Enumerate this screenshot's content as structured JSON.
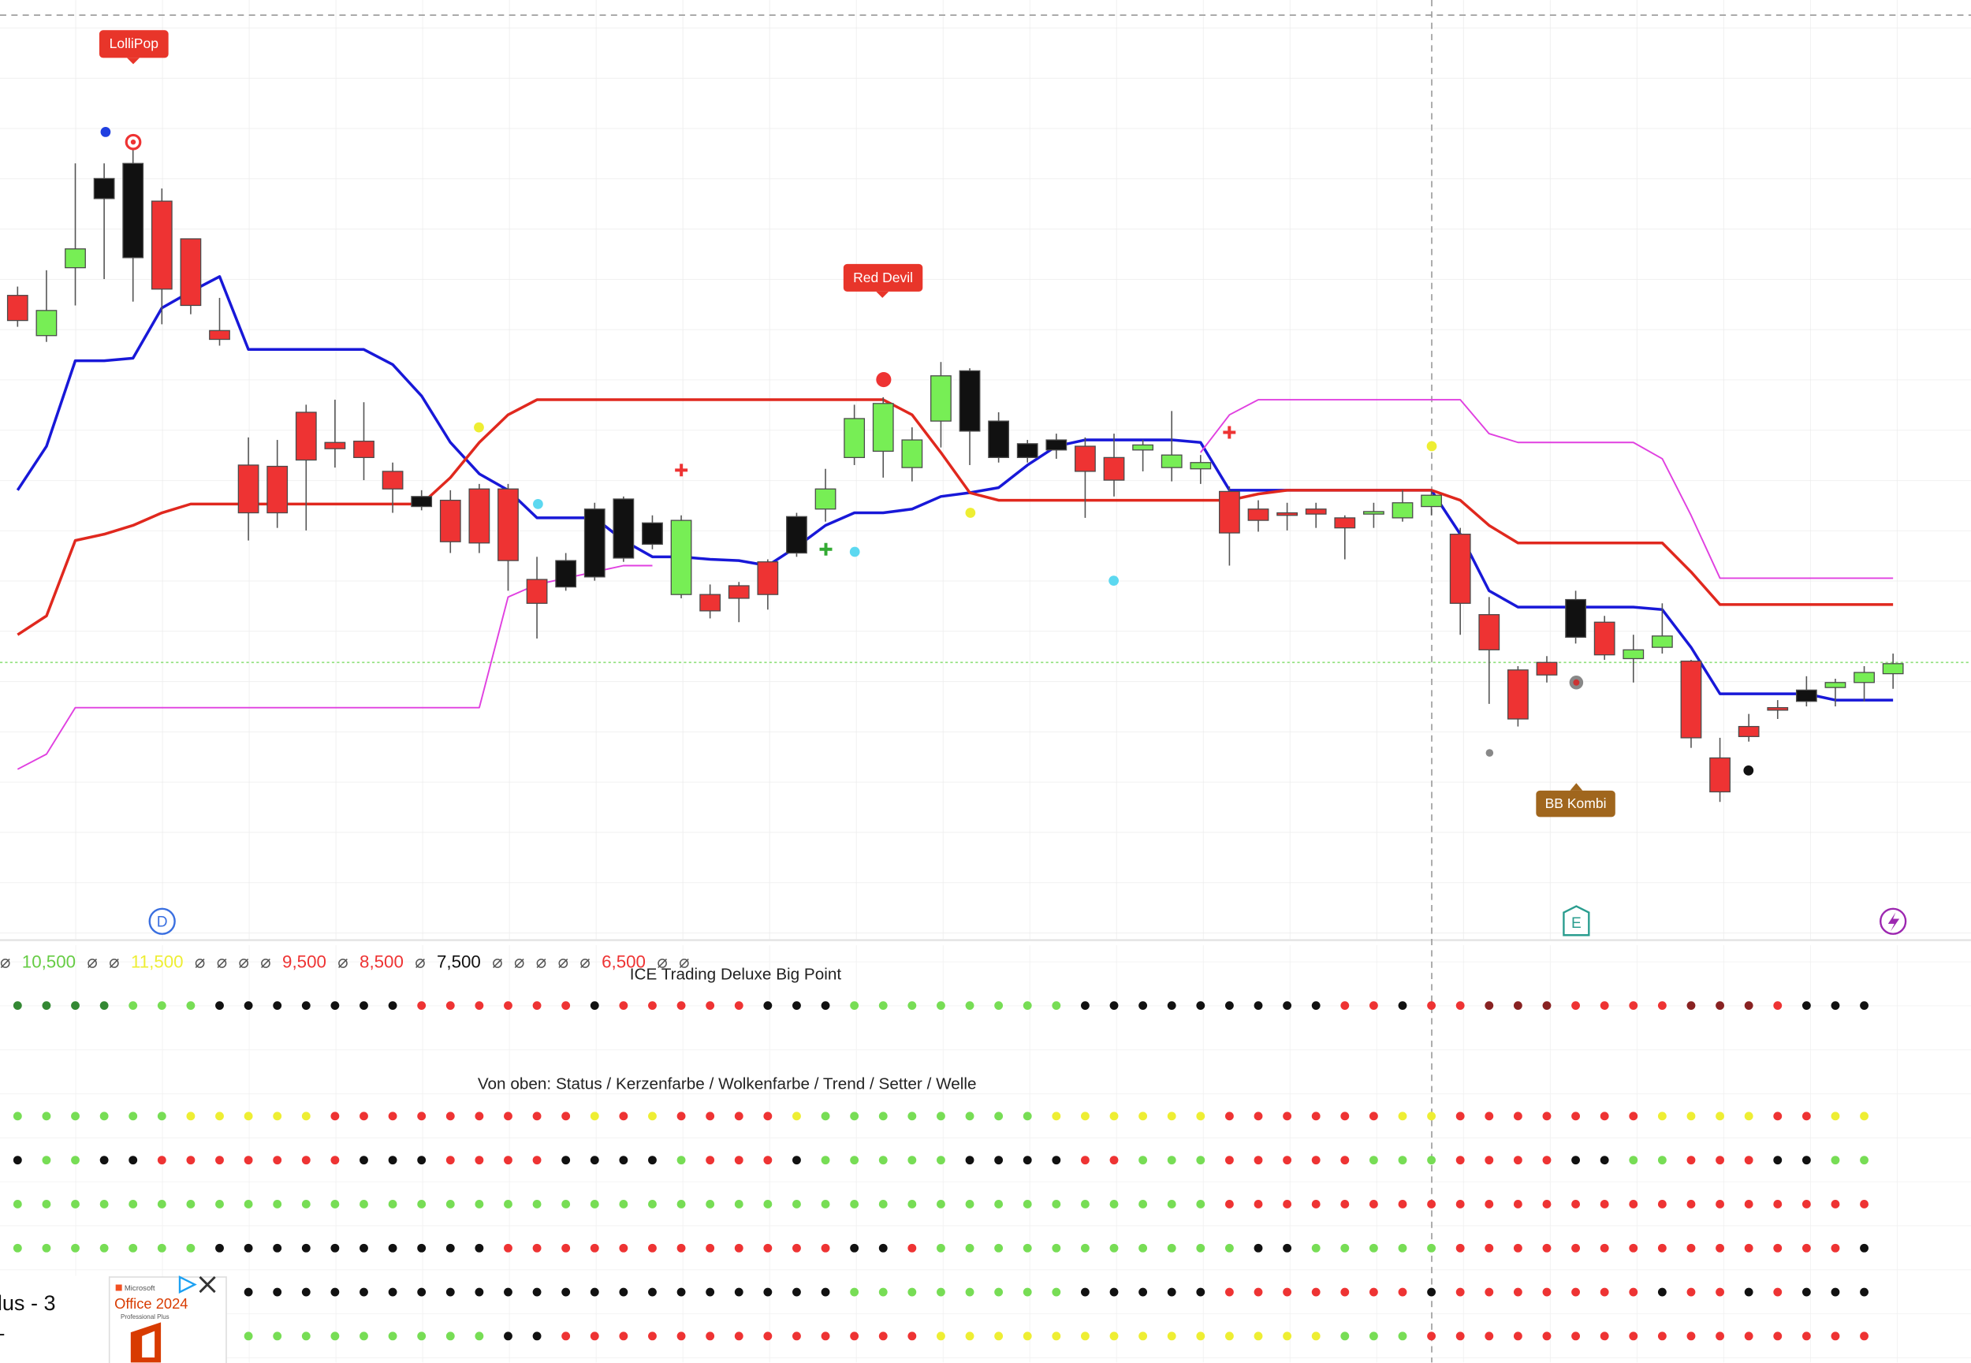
{
  "chart_data": {
    "type": "candlestick",
    "open": [
      465,
      433,
      487,
      542,
      495,
      540,
      510,
      437,
      330,
      329,
      372,
      348,
      349,
      325,
      297,
      302,
      311,
      311,
      239,
      233,
      241,
      256,
      267,
      227,
      227,
      234,
      253,
      260,
      295,
      336,
      341,
      328,
      365,
      357,
      336,
      336,
      342,
      345,
      336,
      342,
      328,
      327,
      309,
      295,
      292,
      295,
      288,
      291,
      288,
      297,
      275,
      211,
      167,
      173,
      193,
      205,
      176,
      185,
      174,
      97,
      122,
      137,
      142,
      153,
      157,
      164
    ],
    "high": [
      472,
      485,
      570,
      570,
      585,
      550,
      510,
      463,
      352,
      350,
      378,
      382,
      380,
      332,
      310,
      310,
      315,
      315,
      257,
      260,
      300,
      305,
      290,
      290,
      235,
      237,
      255,
      292,
      327,
      378,
      384,
      360,
      412,
      407,
      372,
      350,
      355,
      352,
      355,
      350,
      373,
      338,
      313,
      302,
      300,
      300,
      290,
      300,
      310,
      310,
      280,
      225,
      170,
      178,
      230,
      210,
      195,
      220,
      175,
      113,
      132,
      143,
      162,
      160,
      170,
      180
    ],
    "low": [
      440,
      428,
      457,
      478,
      460,
      442,
      450,
      425,
      270,
      280,
      278,
      328,
      318,
      292,
      294,
      260,
      260,
      230,
      192,
      230,
      238,
      253,
      263,
      224,
      208,
      205,
      215,
      257,
      285,
      330,
      320,
      317,
      344,
      330,
      332,
      332,
      335,
      288,
      305,
      325,
      317,
      315,
      250,
      277,
      278,
      280,
      255,
      280,
      285,
      290,
      195,
      140,
      122,
      157,
      188,
      175,
      157,
      180,
      105,
      62,
      110,
      128,
      138,
      138,
      142,
      152
    ],
    "close": [
      445,
      453,
      502,
      558,
      570,
      470,
      457,
      430,
      292,
      292,
      334,
      343,
      336,
      311,
      305,
      269,
      268,
      254,
      220,
      254,
      295,
      303,
      284,
      286,
      214,
      224,
      227,
      289,
      311,
      367,
      379,
      350,
      401,
      405,
      365,
      347,
      350,
      325,
      318,
      346,
      338,
      332,
      276,
      286,
      290,
      291,
      280,
      293,
      300,
      306,
      220,
      183,
      128,
      163,
      223,
      179,
      183,
      194,
      113,
      70,
      114,
      135,
      151,
      157,
      165,
      172
    ],
    "colors": [
      "#e33",
      "#7e5",
      "#7e5",
      "#111",
      "#111",
      "#e33",
      "#e33",
      "#e33",
      "#e33",
      "#e33",
      "#e33",
      "#e33",
      "#e33",
      "#e33",
      "#111",
      "#e33",
      "#e33",
      "#e33",
      "#e33",
      "#111",
      "#111",
      "#111",
      "#111",
      "#7e5",
      "#e33",
      "#e33",
      "#e33",
      "#111",
      "#7e5",
      "#7e5",
      "#7e5",
      "#7e5",
      "#7e5",
      "#111",
      "#111",
      "#111",
      "#111",
      "#e33",
      "#e33",
      "#7e5",
      "#7e5",
      "#7e5",
      "#e33",
      "#e33",
      "#e33",
      "#e33",
      "#e33",
      "#7e5",
      "#7e5",
      "#7e5",
      "#e33",
      "#e33",
      "#e33",
      "#e33",
      "#111",
      "#e33",
      "#7e5",
      "#7e5",
      "#e33",
      "#e33",
      "#e33",
      "#e33",
      "#111",
      "#7e5",
      "#7e5",
      "#7e5"
    ],
    "ylim": [
      0,
      700
    ],
    "series": [
      {
        "color": "#1818d8",
        "values": [
          310,
          345,
          413,
          413,
          415,
          455,
          468,
          480,
          422,
          422,
          422,
          422,
          422,
          410,
          385,
          348,
          323,
          310,
          288,
          288,
          288,
          270,
          257,
          257,
          255,
          254,
          250,
          265,
          282,
          292,
          292,
          295,
          305,
          308,
          312,
          330,
          345,
          350,
          350,
          350,
          350,
          348,
          310,
          310,
          310,
          310,
          310,
          310,
          310,
          310,
          275,
          230,
          217,
          217,
          217,
          217,
          217,
          215,
          185,
          148,
          148,
          148,
          148,
          143,
          143,
          143
        ]
      },
      {
        "color": "#e0281e",
        "values": [
          195,
          210,
          270,
          275,
          282,
          292,
          299,
          299,
          299,
          299,
          299,
          299,
          299,
          299,
          299,
          320,
          348,
          370,
          382,
          382,
          382,
          382,
          382,
          382,
          382,
          382,
          382,
          382,
          382,
          382,
          382,
          370,
          340,
          308,
          302,
          302,
          302,
          302,
          302,
          302,
          302,
          302,
          302,
          307,
          310,
          310,
          310,
          310,
          310,
          310,
          302,
          282,
          268,
          268,
          268,
          268,
          268,
          268,
          245,
          219,
          219,
          219,
          219,
          219,
          219,
          219
        ]
      },
      {
        "color": "#e040e0",
        "values": [
          88,
          100,
          137,
          137,
          137,
          137,
          137,
          137,
          137,
          137,
          137,
          137,
          137,
          137,
          137,
          137,
          137,
          225,
          235,
          240,
          245,
          250,
          250,
          null,
          null,
          null,
          null,
          null,
          null,
          null,
          null,
          null,
          null,
          null,
          null,
          null,
          null,
          null,
          null,
          null,
          null,
          340,
          370,
          382,
          382,
          382,
          382,
          382,
          382,
          382,
          382,
          355,
          348,
          348,
          348,
          348,
          348,
          335,
          290,
          240,
          240,
          240,
          240,
          240,
          240,
          240
        ]
      }
    ]
  },
  "labels": {
    "lollipop": "LolliPop",
    "red_devil": "Red Devil",
    "bb_kombi": "BB Kombi"
  },
  "badges": {
    "d": "D",
    "e": "E"
  },
  "status_row": [
    {
      "text": "⌀",
      "color": "#555"
    },
    {
      "text": "10,500",
      "color": "#6c4"
    },
    {
      "text": "⌀",
      "color": "#555"
    },
    {
      "text": "⌀",
      "color": "#555"
    },
    {
      "text": "11,500",
      "color": "#ee3"
    },
    {
      "text": "⌀",
      "color": "#555"
    },
    {
      "text": "⌀",
      "color": "#555"
    },
    {
      "text": "⌀",
      "color": "#555"
    },
    {
      "text": "⌀",
      "color": "#555"
    },
    {
      "text": "9,500",
      "color": "#e33"
    },
    {
      "text": "⌀",
      "color": "#555"
    },
    {
      "text": "8,500",
      "color": "#e33"
    },
    {
      "text": "⌀",
      "color": "#555"
    },
    {
      "text": "7,500",
      "color": "#111"
    },
    {
      "text": "⌀",
      "color": "#555"
    },
    {
      "text": "⌀",
      "color": "#555"
    },
    {
      "text": "⌀",
      "color": "#555"
    },
    {
      "text": "⌀",
      "color": "#555"
    },
    {
      "text": "⌀",
      "color": "#555"
    },
    {
      "text": "6,500",
      "color": "#e33"
    },
    {
      "text": "⌀",
      "color": "#555"
    },
    {
      "text": "⌀",
      "color": "#555"
    }
  ],
  "indicator_title": "ICE Trading Deluxe Big Point",
  "legend_note": "Von oben: Status / Kerzenfarbe / Wolkenfarbe / Trend / Setter / Welle",
  "indicator_rows": [
    {
      "colors": [
        "#383",
        "#383",
        "#383",
        "#383",
        "#7d5",
        "#7d5",
        "#7d5",
        "#111",
        "#111",
        "#111",
        "#111",
        "#111",
        "#111",
        "#111",
        "#e33",
        "#e33",
        "#e33",
        "#e33",
        "#e33",
        "#e33",
        "#111",
        "#e33",
        "#e33",
        "#e33",
        "#e33",
        "#e33",
        "#111",
        "#111",
        "#111",
        "#7d5",
        "#7d5",
        "#7d5",
        "#7d5",
        "#7d5",
        "#7d5",
        "#7d5",
        "#7d5",
        "#111",
        "#111",
        "#111",
        "#111",
        "#111",
        "#111",
        "#111",
        "#111",
        "#111",
        "#e33",
        "#e33",
        "#111",
        "#e33",
        "#e33",
        "#822",
        "#822",
        "#822",
        "#e33",
        "#e33",
        "#e33",
        "#e33",
        "#822",
        "#822",
        "#822",
        "#e33",
        "#111",
        "#111",
        "#111"
      ]
    },
    {
      "colors": [
        "#7d5",
        "#7d5",
        "#7d5",
        "#7d5",
        "#7d5",
        "#7d5",
        "#ee3",
        "#ee3",
        "#ee3",
        "#ee3",
        "#ee3",
        "#e33",
        "#e33",
        "#e33",
        "#e33",
        "#e33",
        "#e33",
        "#e33",
        "#e33",
        "#e33",
        "#ee3",
        "#e33",
        "#ee3",
        "#e33",
        "#e33",
        "#e33",
        "#e33",
        "#ee3",
        "#7d5",
        "#7d5",
        "#7d5",
        "#7d5",
        "#7d5",
        "#7d5",
        "#7d5",
        "#7d5",
        "#ee3",
        "#ee3",
        "#ee3",
        "#ee3",
        "#ee3",
        "#ee3",
        "#e33",
        "#e33",
        "#e33",
        "#e33",
        "#e33",
        "#e33",
        "#ee3",
        "#ee3",
        "#e33",
        "#e33",
        "#e33",
        "#e33",
        "#e33",
        "#e33",
        "#e33",
        "#ee3",
        "#ee3",
        "#ee3",
        "#ee3",
        "#e33",
        "#e33",
        "#ee3",
        "#ee3"
      ]
    },
    {
      "colors": [
        "#111",
        "#7d5",
        "#7d5",
        "#111",
        "#111",
        "#e33",
        "#e33",
        "#e33",
        "#e33",
        "#e33",
        "#e33",
        "#e33",
        "#111",
        "#111",
        "#111",
        "#e33",
        "#e33",
        "#e33",
        "#e33",
        "#111",
        "#111",
        "#111",
        "#111",
        "#7d5",
        "#e33",
        "#e33",
        "#e33",
        "#111",
        "#7d5",
        "#7d5",
        "#7d5",
        "#7d5",
        "#7d5",
        "#111",
        "#111",
        "#111",
        "#111",
        "#e33",
        "#e33",
        "#7d5",
        "#7d5",
        "#7d5",
        "#e33",
        "#e33",
        "#e33",
        "#e33",
        "#e33",
        "#7d5",
        "#7d5",
        "#7d5",
        "#e33",
        "#e33",
        "#e33",
        "#e33",
        "#111",
        "#111",
        "#7d5",
        "#7d5",
        "#e33",
        "#e33",
        "#e33",
        "#111",
        "#111",
        "#7d5",
        "#7d5"
      ]
    },
    {
      "colors": [
        "#7d5",
        "#7d5",
        "#7d5",
        "#7d5",
        "#7d5",
        "#7d5",
        "#7d5",
        "#7d5",
        "#7d5",
        "#7d5",
        "#7d5",
        "#7d5",
        "#7d5",
        "#7d5",
        "#7d5",
        "#7d5",
        "#7d5",
        "#7d5",
        "#7d5",
        "#7d5",
        "#7d5",
        "#7d5",
        "#7d5",
        "#7d5",
        "#7d5",
        "#7d5",
        "#7d5",
        "#7d5",
        "#7d5",
        "#7d5",
        "#7d5",
        "#7d5",
        "#7d5",
        "#7d5",
        "#7d5",
        "#7d5",
        "#7d5",
        "#7d5",
        "#7d5",
        "#7d5",
        "#7d5",
        "#7d5",
        "#e33",
        "#e33",
        "#e33",
        "#e33",
        "#e33",
        "#e33",
        "#e33",
        "#e33",
        "#e33",
        "#e33",
        "#e33",
        "#e33",
        "#e33",
        "#e33",
        "#e33",
        "#e33",
        "#e33",
        "#e33",
        "#e33",
        "#e33",
        "#e33",
        "#e33",
        "#e33"
      ]
    },
    {
      "colors": [
        "#7d5",
        "#7d5",
        "#7d5",
        "#7d5",
        "#7d5",
        "#7d5",
        "#7d5",
        "#111",
        "#111",
        "#111",
        "#111",
        "#111",
        "#111",
        "#111",
        "#111",
        "#111",
        "#111",
        "#e33",
        "#e33",
        "#e33",
        "#e33",
        "#e33",
        "#e33",
        "#e33",
        "#e33",
        "#e33",
        "#e33",
        "#e33",
        "#e33",
        "#111",
        "#111",
        "#e33",
        "#7d5",
        "#7d5",
        "#7d5",
        "#7d5",
        "#7d5",
        "#7d5",
        "#7d5",
        "#7d5",
        "#7d5",
        "#7d5",
        "#7d5",
        "#111",
        "#111",
        "#7d5",
        "#7d5",
        "#7d5",
        "#7d5",
        "#7d5",
        "#e33",
        "#e33",
        "#e33",
        "#e33",
        "#e33",
        "#e33",
        "#e33",
        "#e33",
        "#e33",
        "#e33",
        "#e33",
        "#e33",
        "#e33",
        "#e33",
        "#111"
      ]
    },
    {
      "colors": [
        null,
        null,
        null,
        null,
        null,
        null,
        null,
        null,
        "#111",
        "#111",
        "#111",
        "#111",
        "#111",
        "#111",
        "#111",
        "#111",
        "#111",
        "#111",
        "#111",
        "#111",
        "#111",
        "#111",
        "#111",
        "#111",
        "#111",
        "#111",
        "#111",
        "#111",
        "#111",
        "#7d5",
        "#7d5",
        "#7d5",
        "#7d5",
        "#7d5",
        "#7d5",
        "#7d5",
        "#7d5",
        "#111",
        "#111",
        "#111",
        "#111",
        "#111",
        "#e33",
        "#e33",
        "#e33",
        "#e33",
        "#e33",
        "#e33",
        "#e33",
        "#111",
        "#e33",
        "#e33",
        "#e33",
        "#e33",
        "#e33",
        "#e33",
        "#e33",
        "#111",
        "#e33",
        "#e33",
        "#111",
        "#e33",
        "#111",
        "#111",
        "#111"
      ]
    },
    {
      "colors": [
        null,
        null,
        null,
        null,
        null,
        null,
        null,
        null,
        "#7d5",
        "#7d5",
        "#7d5",
        "#7d5",
        "#7d5",
        "#7d5",
        "#7d5",
        "#7d5",
        "#7d5",
        "#111",
        "#111",
        "#e33",
        "#e33",
        "#e33",
        "#e33",
        "#e33",
        "#e33",
        "#e33",
        "#e33",
        "#e33",
        "#e33",
        "#e33",
        "#e33",
        "#e33",
        "#ee3",
        "#ee3",
        "#ee3",
        "#ee3",
        "#ee3",
        "#ee3",
        "#ee3",
        "#ee3",
        "#ee3",
        "#ee3",
        "#ee3",
        "#ee3",
        "#ee3",
        "#ee3",
        "#7d5",
        "#7d5",
        "#7d5",
        "#e33",
        "#e33",
        "#e33",
        "#e33",
        "#e33",
        "#e33",
        "#e33",
        "#e33",
        "#e33",
        "#e33",
        "#e33",
        "#e33",
        "#e33",
        "#e33",
        "#e33",
        "#e33"
      ]
    }
  ],
  "panel_title": "lus - 3",
  "panel_subtitle": "-",
  "ad": {
    "brand": "Microsoft",
    "product": "Office 2024",
    "edition": "Professional Plus"
  }
}
